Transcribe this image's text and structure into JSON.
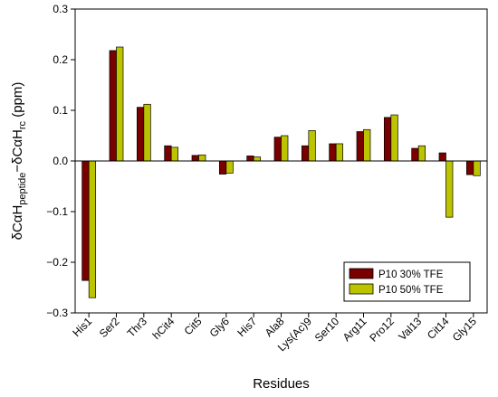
{
  "chart_data": {
    "type": "bar",
    "title": "",
    "xlabel": "Residues",
    "ylabel_parts": {
      "base1": "δCαH",
      "sub1": "peptide",
      "mid": "−δCαH",
      "sub2": "rc",
      "unit": " (ppm)"
    },
    "ylim": [
      -0.3,
      0.3
    ],
    "yticks": [
      "-0.3",
      "-0.2",
      "-0.1",
      "0.0",
      "0.1",
      "0.2",
      "0.3"
    ],
    "grid": false,
    "legend_position": "bottom-right",
    "categories": [
      "His1",
      "Ser2",
      "Thr3",
      "hCit4",
      "Cit5",
      "Gly6",
      "His7",
      "Ala8",
      "Lys(Ac)9",
      "Ser10",
      "Arg11",
      "Pro12",
      "Val13",
      "Cit14",
      "Gly15"
    ],
    "series": [
      {
        "name": "P10 30% TFE",
        "color": "#7a0000",
        "values": [
          -0.236,
          0.218,
          0.106,
          0.03,
          0.011,
          -0.026,
          0.01,
          0.047,
          0.03,
          0.034,
          0.058,
          0.086,
          0.025,
          0.016,
          -0.027
        ]
      },
      {
        "name": "P10 50% TFE",
        "color": "#bcc400",
        "values": [
          -0.27,
          0.225,
          0.112,
          0.027,
          0.012,
          -0.024,
          0.008,
          0.05,
          0.06,
          0.034,
          0.062,
          0.091,
          0.03,
          -0.111,
          -0.029
        ]
      }
    ]
  }
}
